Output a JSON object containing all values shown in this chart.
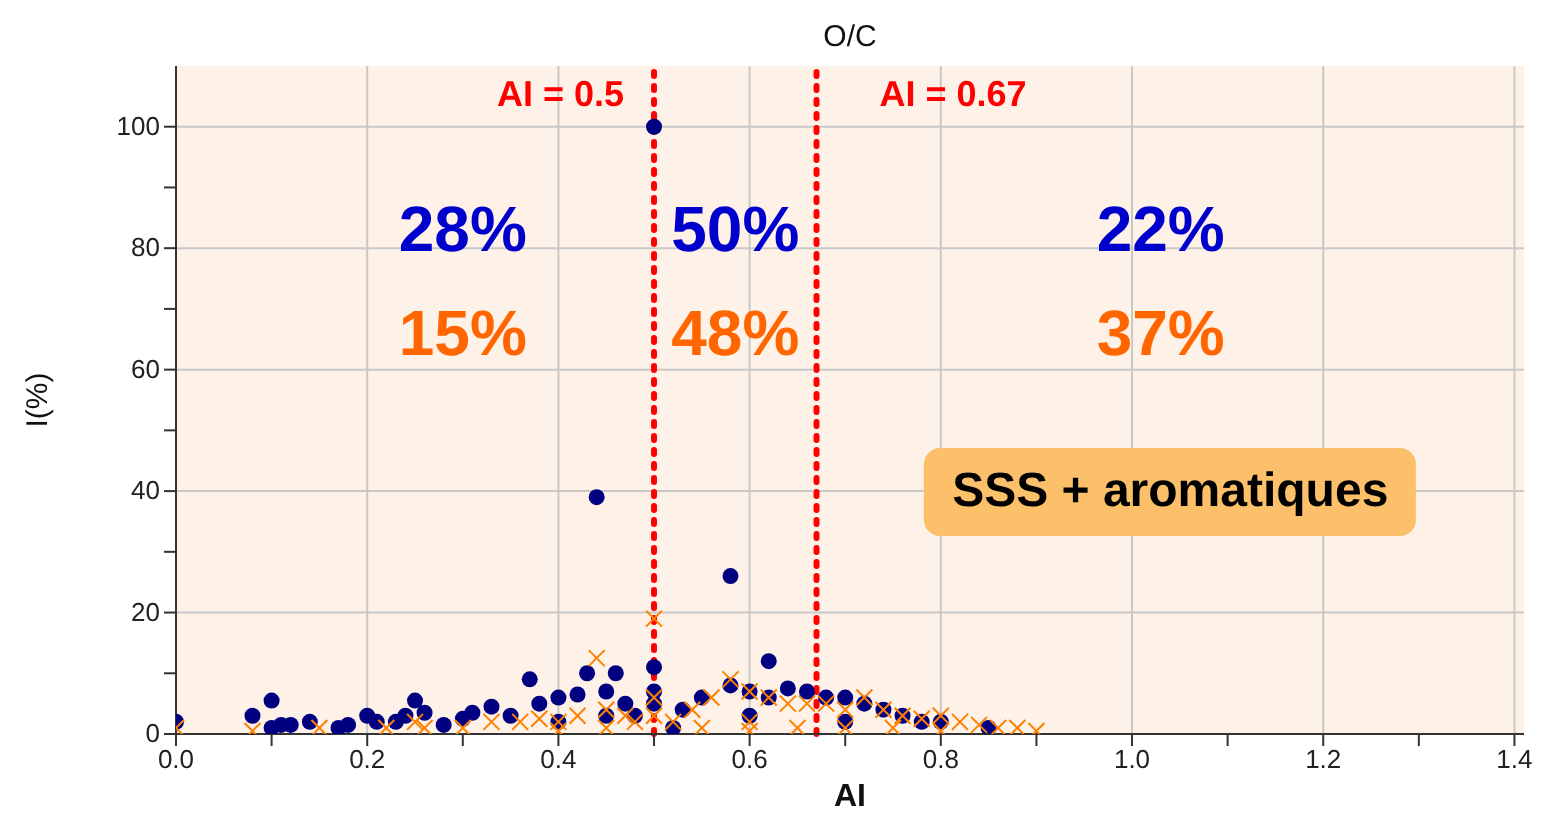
{
  "chart_data": {
    "type": "scatter",
    "title": "O/C",
    "xlabel": "AI",
    "ylabel": "I(%)",
    "xlim": [
      0,
      1.41
    ],
    "ylim": [
      0,
      110
    ],
    "xticks": [
      {
        "value": 0,
        "label": "0.0"
      },
      {
        "value": 0.1,
        "label": null
      },
      {
        "value": 0.2,
        "label": "0.2"
      },
      {
        "value": 0.3,
        "label": null
      },
      {
        "value": 0.4,
        "label": "0.4"
      },
      {
        "value": 0.5,
        "label": null
      },
      {
        "value": 0.6,
        "label": "0.6"
      },
      {
        "value": 0.7,
        "label": null
      },
      {
        "value": 0.8,
        "label": "0.8"
      },
      {
        "value": 0.9,
        "label": null
      },
      {
        "value": 1,
        "label": "1.0"
      },
      {
        "value": 1.1,
        "label": null
      },
      {
        "value": 1.2,
        "label": "1.2"
      },
      {
        "value": 1.3,
        "label": null
      },
      {
        "value": 1.4,
        "label": "1.4"
      }
    ],
    "yticks": [
      0,
      {
        "value": 10,
        "label": null
      },
      20,
      {
        "value": 30,
        "label": null
      },
      40,
      {
        "value": 50,
        "label": null
      },
      60,
      {
        "value": 70,
        "label": null
      },
      80,
      {
        "value": 90,
        "label": null
      },
      100
    ],
    "grid": true,
    "legend": false,
    "series": [
      {
        "color": "#000080",
        "marker": "circle",
        "x": [
          0,
          0.08,
          0.1,
          0.1,
          0.11,
          0.12,
          0.14,
          0.17,
          0.18,
          0.2,
          0.21,
          0.23,
          0.24,
          0.25,
          0.26,
          0.28,
          0.3,
          0.31,
          0.33,
          0.35,
          0.37,
          0.38,
          0.4,
          0.42,
          0.43,
          0.44,
          0.45,
          0.46,
          0.47,
          0.48,
          0.5,
          0.5,
          0.5,
          0.5,
          0.53,
          0.55,
          0.58,
          0.58,
          0.6,
          0.62,
          0.62,
          0.64,
          0.66,
          0.68,
          0.7,
          0.72,
          0.74,
          0.76,
          0.78,
          0.8,
          0.85,
          0.4,
          0.45,
          0.52,
          0.6,
          0.7
        ],
        "values": [
          2,
          3,
          5.5,
          1,
          1.5,
          1.5,
          2,
          1,
          1.5,
          3,
          2,
          2,
          3,
          5.5,
          3.5,
          1.5,
          2.5,
          3.5,
          4.5,
          3,
          9,
          5,
          6,
          6.5,
          10,
          39,
          7,
          10,
          5,
          3,
          100,
          11,
          7,
          5,
          4,
          6,
          26,
          8,
          7,
          12,
          6,
          7.5,
          7,
          6,
          6,
          5,
          4,
          3,
          2,
          2,
          1,
          2,
          3,
          1,
          3,
          2
        ]
      },
      {
        "color": "#ff8000",
        "marker": "cross",
        "x": [
          0,
          0.08,
          0.15,
          0.22,
          0.25,
          0.26,
          0.3,
          0.33,
          0.36,
          0.38,
          0.4,
          0.42,
          0.44,
          0.45,
          0.47,
          0.48,
          0.5,
          0.5,
          0.5,
          0.52,
          0.54,
          0.56,
          0.58,
          0.6,
          0.62,
          0.64,
          0.66,
          0.68,
          0.7,
          0.72,
          0.74,
          0.76,
          0.78,
          0.8,
          0.82,
          0.84,
          0.86,
          0.88,
          0.9,
          0.55,
          0.6,
          0.65,
          0.7,
          0.75,
          0.8,
          0.45,
          0.4,
          0.6
        ],
        "values": [
          1,
          0.5,
          1,
          1,
          2,
          1,
          1,
          2,
          2,
          2.5,
          2,
          3,
          12.5,
          4,
          3,
          2,
          19,
          6,
          3,
          2,
          4,
          6,
          9,
          7,
          6,
          5,
          5,
          5,
          4,
          6,
          4,
          3,
          2.5,
          3,
          2,
          1.5,
          1,
          1,
          0.5,
          1,
          2,
          1,
          1,
          1,
          0.5,
          1,
          0.5,
          0.5
        ]
      }
    ],
    "ref_lines": [
      {
        "axis": "x",
        "value": 0.5,
        "label": "AI = 0.5",
        "color": "#ff0000",
        "line_style": "dotted"
      },
      {
        "axis": "x",
        "value": 0.67,
        "label": "AI = 0.67",
        "color": "#ff0000",
        "line_style": "dotted"
      }
    ],
    "annotations": [
      "28%",
      "15%",
      "50%",
      "48%",
      "22%",
      "37%",
      "SSS + aromatiques"
    ]
  }
}
